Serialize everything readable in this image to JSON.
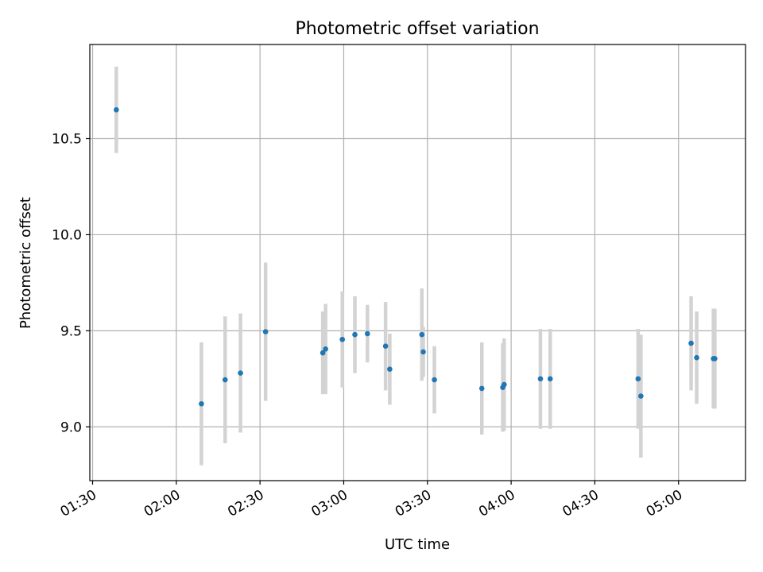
{
  "chart_data": {
    "type": "scatter",
    "title": "Photometric offset variation",
    "xlabel": "UTC time",
    "ylabel": "Photometric offset",
    "x_ticks": [
      "01:30",
      "02:00",
      "02:30",
      "03:00",
      "03:30",
      "04:00",
      "04:30",
      "05:00"
    ],
    "y_ticks": [
      "9.0",
      "9.5",
      "10.0",
      "10.5"
    ],
    "xlim": [
      "01:29",
      "05:24"
    ],
    "ylim": [
      8.72,
      10.99
    ],
    "grid": true,
    "colors": {
      "point": "#1f77b4",
      "errorbar": "#d3d3d3",
      "grid": "#b0b0b0"
    },
    "points": [
      {
        "x": "01:38:30",
        "y": 10.65,
        "err": 0.225
      },
      {
        "x": "02:09:00",
        "y": 9.12,
        "err": 0.32
      },
      {
        "x": "02:17:30",
        "y": 9.245,
        "err": 0.33
      },
      {
        "x": "02:23:00",
        "y": 9.28,
        "err": 0.31
      },
      {
        "x": "02:32:00",
        "y": 9.495,
        "err": 0.36
      },
      {
        "x": "02:52:30",
        "y": 9.385,
        "err": 0.215
      },
      {
        "x": "02:53:30",
        "y": 9.405,
        "err": 0.235
      },
      {
        "x": "02:59:30",
        "y": 9.455,
        "err": 0.25
      },
      {
        "x": "03:04:00",
        "y": 9.48,
        "err": 0.2
      },
      {
        "x": "03:08:30",
        "y": 9.485,
        "err": 0.15
      },
      {
        "x": "03:15:00",
        "y": 9.42,
        "err": 0.23
      },
      {
        "x": "03:16:30",
        "y": 9.3,
        "err": 0.185
      },
      {
        "x": "03:28:00",
        "y": 9.48,
        "err": 0.24
      },
      {
        "x": "03:28:30",
        "y": 9.39,
        "err": 0.13
      },
      {
        "x": "03:32:30",
        "y": 9.245,
        "err": 0.175
      },
      {
        "x": "03:49:30",
        "y": 9.2,
        "err": 0.24
      },
      {
        "x": "03:57:00",
        "y": 9.205,
        "err": 0.23
      },
      {
        "x": "03:57:30",
        "y": 9.22,
        "err": 0.24
      },
      {
        "x": "04:10:30",
        "y": 9.25,
        "err": 0.26
      },
      {
        "x": "04:14:00",
        "y": 9.25,
        "err": 0.26
      },
      {
        "x": "04:45:30",
        "y": 9.25,
        "err": 0.26
      },
      {
        "x": "04:46:30",
        "y": 9.16,
        "err": 0.32
      },
      {
        "x": "05:04:30",
        "y": 9.435,
        "err": 0.245
      },
      {
        "x": "05:06:30",
        "y": 9.36,
        "err": 0.24
      },
      {
        "x": "05:12:30",
        "y": 9.355,
        "err": 0.26
      },
      {
        "x": "05:13:00",
        "y": 9.355,
        "err": 0.26
      }
    ]
  }
}
